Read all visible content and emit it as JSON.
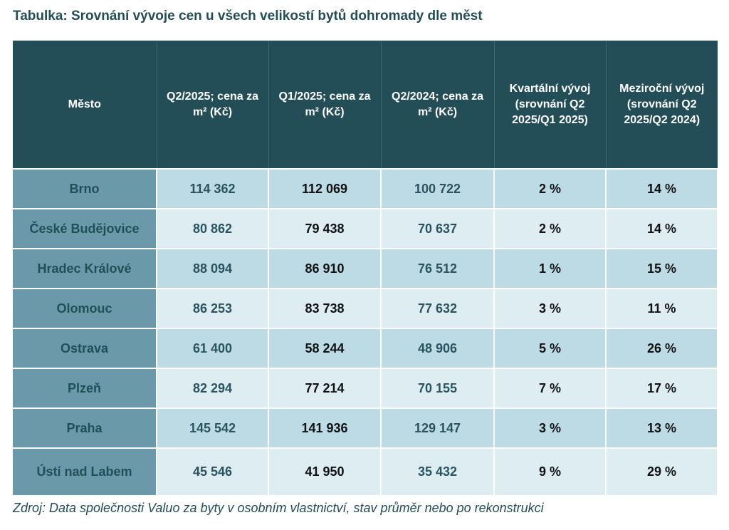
{
  "title": "Tabulka: Srovnání vývoje cen u všech velikostí bytů dohromady dle měst",
  "headers": [
    "Město",
    "Q2/2025; cena za m² (Kč)",
    "Q1/2025;  cena za m² (Kč)",
    "Q2/2024; cena za m² (Kč)",
    "Kvartální vývoj (srovnání Q2 2025/Q1 2025)",
    "Meziroční vývoj (srovnání Q2 2025/Q2 2024)"
  ],
  "rows": [
    [
      "Brno",
      "114 362",
      "112 069",
      "100 722",
      "2 %",
      "14 %"
    ],
    [
      "České Budějovice",
      "80 862",
      "79 438",
      "70 637",
      "2 %",
      "14 %"
    ],
    [
      "Hradec Králové",
      "88 094",
      "86 910",
      "76 512",
      "1 %",
      "15 %"
    ],
    [
      "Olomouc",
      "86 253",
      "83 738",
      "77 632",
      "3 %",
      "11 %"
    ],
    [
      "Ostrava",
      "61 400",
      "58 244",
      "48 906",
      "5 %",
      "26 %"
    ],
    [
      "Plzeň",
      "82 294",
      "77 214",
      "70 155",
      "7 %",
      "17 %"
    ],
    [
      "Praha",
      "145 542",
      "141 936",
      "129 147",
      "3 %",
      "13 %"
    ],
    [
      "Ústí nad Labem",
      "45 546",
      "41 950",
      "35 432",
      "9 %",
      "29 %"
    ]
  ],
  "caption": "Zdroj: Data společnosti Valuo za byty v osobním vlastnictví, stav průměr nebo po rekonstrukci"
}
